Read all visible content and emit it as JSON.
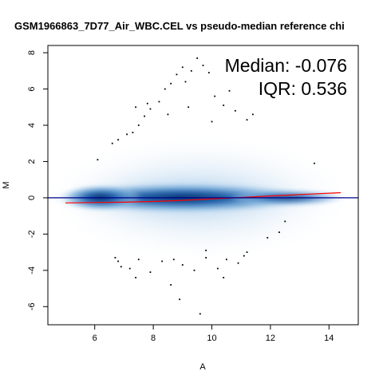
{
  "chart_data": {
    "type": "scatter",
    "title": "GSM1966863_7D77_Air_WBC.CEL vs pseudo-median reference chi",
    "xlabel": "A",
    "ylabel": "M",
    "xlim": [
      4.4,
      15.0
    ],
    "ylim": [
      -7.0,
      8.4
    ],
    "xticks": [
      6,
      8,
      10,
      12,
      14
    ],
    "yticks": [
      -6,
      -4,
      -2,
      0,
      2,
      4,
      6,
      8
    ],
    "annotations": [
      "Median: -0.076",
      "IQR: 0.536"
    ],
    "zero_line": 0,
    "loess_fit": {
      "color": "#ff0000",
      "x": [
        5.0,
        6.0,
        7.0,
        8.0,
        9.0,
        10.0,
        11.0,
        12.0,
        13.0,
        14.4
      ],
      "y": [
        -0.28,
        -0.26,
        -0.24,
        -0.2,
        -0.14,
        -0.06,
        0.02,
        0.1,
        0.18,
        0.28
      ]
    },
    "density": {
      "description_type": "smoothed-density",
      "color_low": "#ffffff",
      "color_high": "#08306b"
    },
    "outliers": {
      "x": [
        6.1,
        6.6,
        6.8,
        7.1,
        7.3,
        7.5,
        7.7,
        7.9,
        8.2,
        8.4,
        8.6,
        8.8,
        9.0,
        9.1,
        9.3,
        9.5,
        9.7,
        9.9,
        10.1,
        10.4,
        10.6,
        11.2,
        11.4,
        7.4,
        7.8,
        8.5,
        9.2,
        10.0,
        10.8,
        13.5,
        6.7,
        6.9,
        7.2,
        7.5,
        7.9,
        8.3,
        8.7,
        9.0,
        9.4,
        9.8,
        10.2,
        10.5,
        10.9,
        11.2,
        11.9,
        12.3,
        12.5,
        8.9,
        9.6,
        6.8,
        7.4,
        8.6,
        9.8,
        10.4,
        11.1
      ],
      "y": [
        2.1,
        3.0,
        3.2,
        3.5,
        3.6,
        4.0,
        4.5,
        4.9,
        5.3,
        6.0,
        6.3,
        6.8,
        7.2,
        6.4,
        7.0,
        7.7,
        7.3,
        6.9,
        5.6,
        5.1,
        5.9,
        4.3,
        4.6,
        5.0,
        5.2,
        4.6,
        5.0,
        4.2,
        4.8,
        1.9,
        -3.3,
        -3.8,
        -3.9,
        -3.4,
        -4.1,
        -3.5,
        -3.4,
        -3.7,
        -4.0,
        -2.9,
        -3.9,
        -3.4,
        -3.6,
        -3.0,
        -2.2,
        -1.9,
        -1.3,
        -5.6,
        -6.4,
        -3.5,
        -4.4,
        -4.8,
        -3.3,
        -4.4,
        -3.2
      ]
    }
  }
}
